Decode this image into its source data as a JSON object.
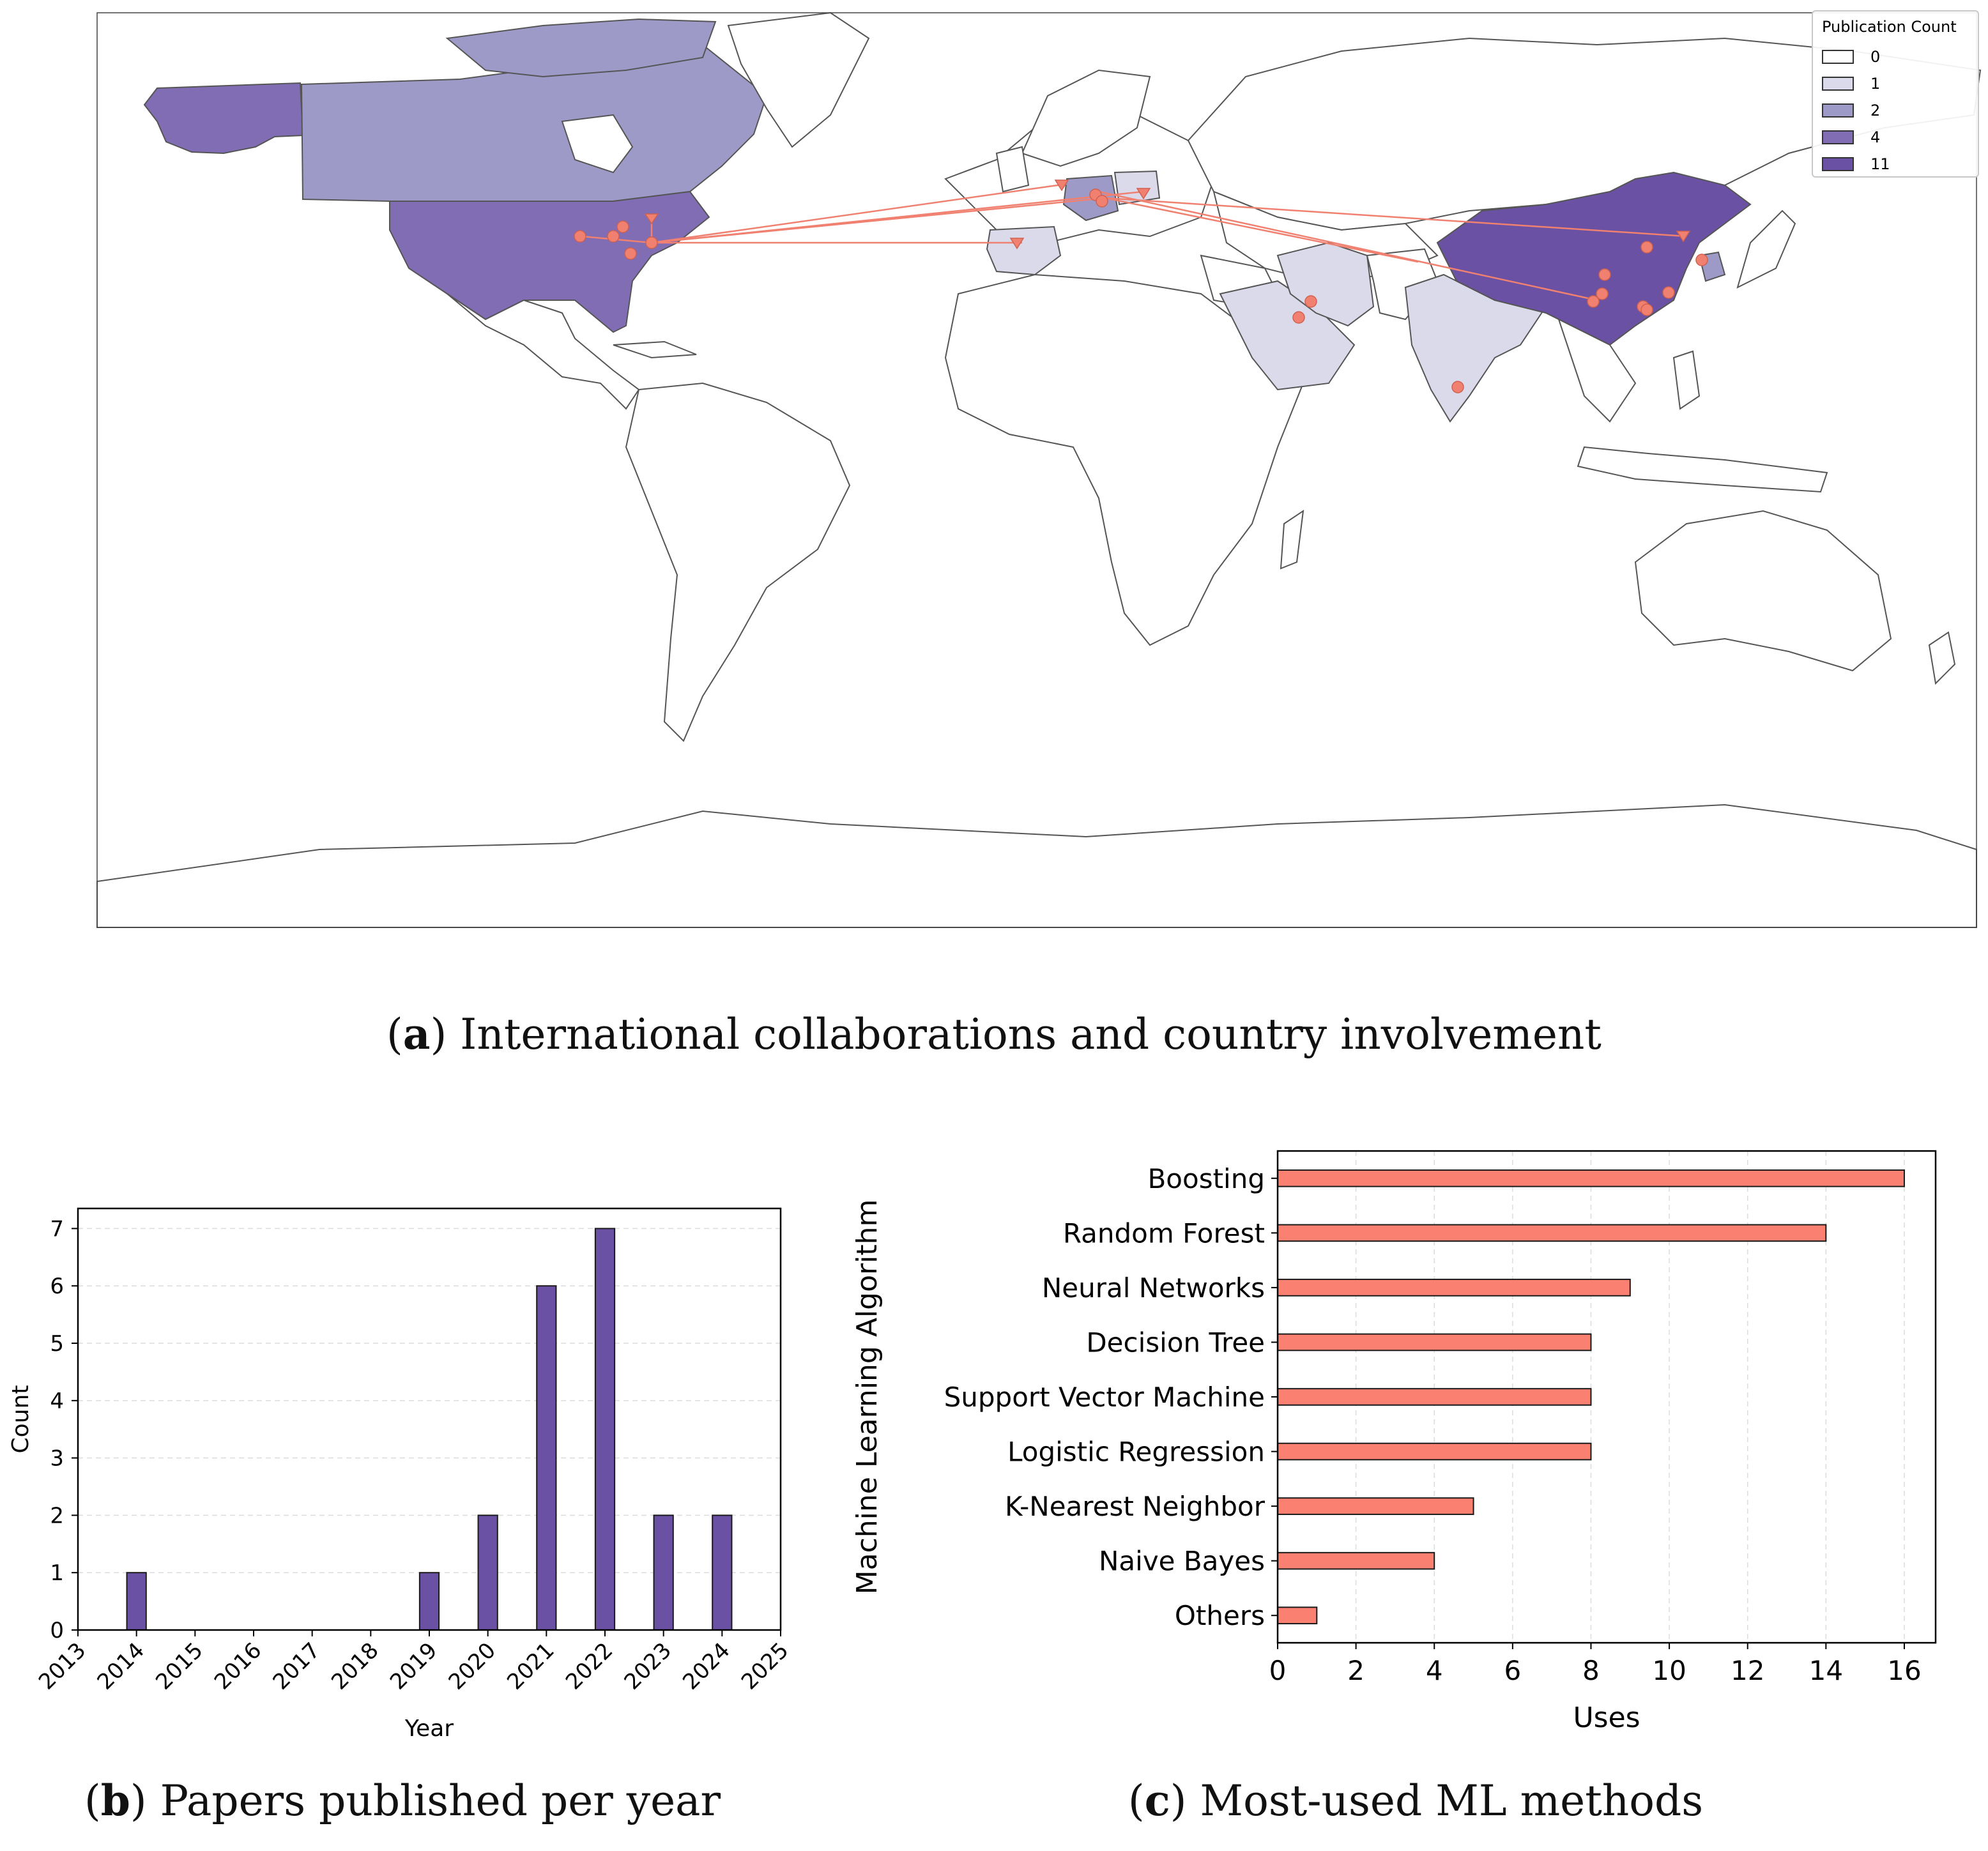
{
  "map": {
    "caption_letter": "a",
    "caption_text": "International collaborations and country involvement",
    "legend_title": "Publication Count",
    "legend": [
      {
        "label": "0",
        "color": "#ffffff"
      },
      {
        "label": "1",
        "color": "#dadaeb"
      },
      {
        "label": "2",
        "color": "#9e9ac8"
      },
      {
        "label": "4",
        "color": "#806db3"
      },
      {
        "label": "11",
        "color": "#6a51a3"
      }
    ],
    "countries": [
      {
        "name": "United States",
        "count": 4
      },
      {
        "name": "Canada",
        "count": 2
      },
      {
        "name": "China",
        "count": 11
      },
      {
        "name": "Germany",
        "count": 2
      },
      {
        "name": "South Korea",
        "count": 2
      },
      {
        "name": "Spain",
        "count": 1
      },
      {
        "name": "Poland",
        "count": 1
      },
      {
        "name": "Iran",
        "count": 1
      },
      {
        "name": "Saudi Arabia",
        "count": 1
      },
      {
        "name": "India",
        "count": 1
      }
    ],
    "link_color": "#f08070"
  },
  "chart_data": [
    {
      "type": "bar",
      "title": "Papers published per year",
      "caption_letter": "b",
      "xlabel": "Year",
      "ylabel": "Count",
      "x": [
        2014,
        2019,
        2020,
        2021,
        2022,
        2023,
        2024
      ],
      "values": [
        1,
        1,
        2,
        6,
        7,
        2,
        2
      ],
      "xticks": [
        2013,
        2014,
        2015,
        2016,
        2017,
        2018,
        2019,
        2020,
        2021,
        2022,
        2023,
        2024,
        2025
      ],
      "yticks": [
        0,
        1,
        2,
        3,
        4,
        5,
        6,
        7
      ],
      "xlim": [
        2013,
        2025
      ],
      "ylim": [
        0,
        7.35
      ],
      "grid": "y dashed",
      "color": "#6a51a3"
    },
    {
      "type": "bar",
      "orientation": "horizontal",
      "title": "Most-used ML methods",
      "caption_letter": "c",
      "xlabel": "Uses",
      "ylabel": "Machine Learning Algorithm",
      "categories": [
        "Boosting",
        "Random Forest",
        "Neural Networks",
        "Decision Tree",
        "Support Vector Machine",
        "Logistic Regression",
        "K-Nearest Neighbor",
        "Naive Bayes",
        "Others"
      ],
      "values": [
        16,
        14,
        9,
        8,
        8,
        8,
        5,
        4,
        1
      ],
      "xticks": [
        0,
        2,
        4,
        6,
        8,
        10,
        12,
        14,
        16
      ],
      "xlim": [
        0,
        16.8
      ],
      "grid": "x dashed",
      "color": "#fa8072"
    }
  ]
}
